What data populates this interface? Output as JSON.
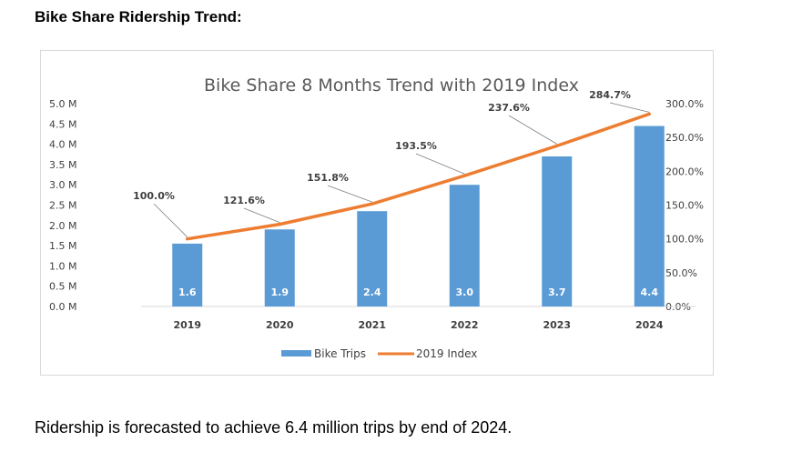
{
  "page": {
    "heading": "Bike Share Ridership Trend:",
    "footer": "Ridership is forecasted to achieve 6.4 million trips by end of 2024."
  },
  "chart_data": {
    "type": "bar",
    "title": "Bike Share 8 Months Trend with 2019 Index",
    "categories": [
      "2019",
      "2020",
      "2021",
      "2022",
      "2023",
      "2024"
    ],
    "series": [
      {
        "name": "Bike Trips",
        "type": "bar",
        "axis": "left",
        "values": [
          1.55,
          1.9,
          2.35,
          3.0,
          3.7,
          4.45
        ],
        "labels": [
          "1.6",
          "1.9",
          "2.4",
          "3.0",
          "3.7",
          "4.4"
        ],
        "color": "#5b9bd5"
      },
      {
        "name": "2019 Index",
        "type": "line",
        "axis": "right",
        "values": [
          100.0,
          121.6,
          151.8,
          193.5,
          237.6,
          284.7
        ],
        "labels": [
          "100.0%",
          "121.6%",
          "151.8%",
          "193.5%",
          "237.6%",
          "284.7%"
        ],
        "color": "#ed7d31"
      }
    ],
    "y_left": {
      "ylim": [
        0,
        5.0
      ],
      "ticks": [
        0,
        0.5,
        1.0,
        1.5,
        2.0,
        2.5,
        3.0,
        3.5,
        4.0,
        4.5,
        5.0
      ],
      "tick_labels": [
        "0.0 M",
        "0.5 M",
        "1.0 M",
        "1.5 M",
        "2.0 M",
        "2.5 M",
        "3.0 M",
        "3.5 M",
        "4.0 M",
        "4.5 M",
        "5.0 M"
      ]
    },
    "y_right": {
      "ylim": [
        0,
        300
      ],
      "ticks": [
        0,
        50,
        100,
        150,
        200,
        250,
        300
      ],
      "tick_labels": [
        "0.0%",
        "50.0%",
        "100.0%",
        "150.0%",
        "200.0%",
        "250.0%",
        "300.0%"
      ]
    },
    "legend": {
      "position": "bottom",
      "entries": [
        "Bike Trips",
        "2019 Index"
      ]
    },
    "grid": false
  }
}
